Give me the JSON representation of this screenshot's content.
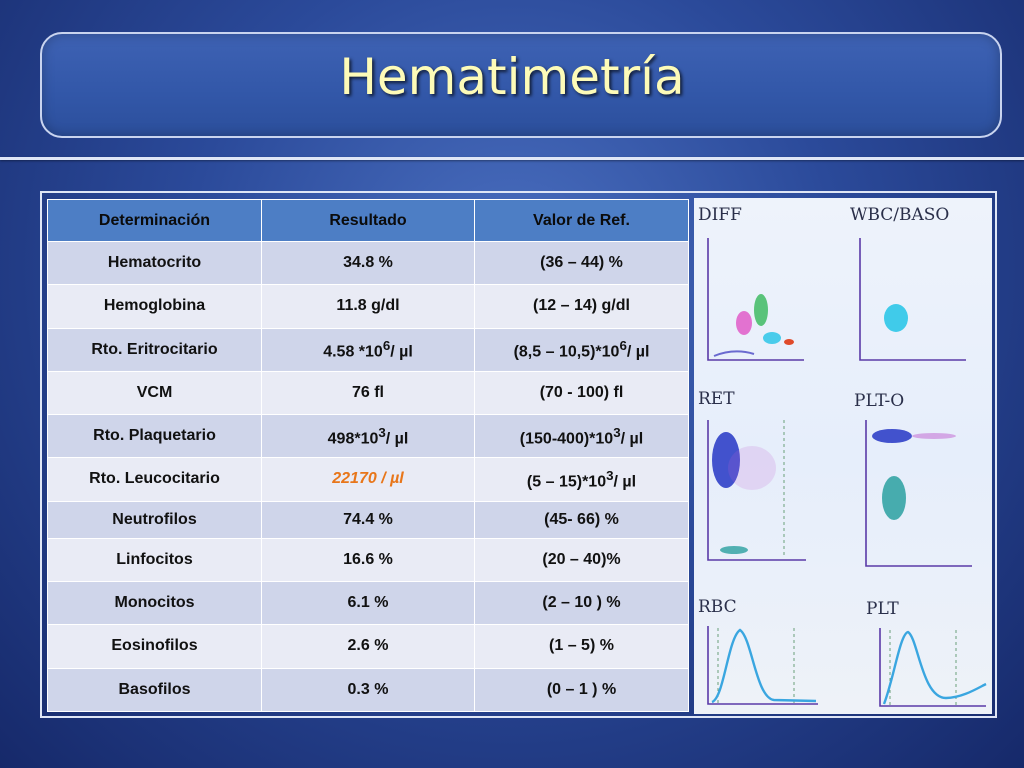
{
  "title": "Hematimetría",
  "table": {
    "headers": [
      "Determinación",
      "Resultado",
      "Valor de Ref."
    ],
    "rows": [
      {
        "name": "Hematocrito",
        "result": "34.8 %",
        "ref": "(36 – 44) %"
      },
      {
        "name": "Hemoglobina",
        "result": "11.8 g/dl",
        "ref": "(12 – 14) g/dl"
      },
      {
        "name": "Rto. Eritrocitario",
        "result_base": "4.58 *10",
        "result_exp": "6",
        "result_tail": "/ µl",
        "ref_base": "(8,5 – 10,5)*10",
        "ref_exp": "6",
        "ref_tail": "/ µl"
      },
      {
        "name": "VCM",
        "result": "76 fl",
        "ref": "(70 - 100) fl"
      },
      {
        "name": "Rto. Plaquetario",
        "result_base": "498*10",
        "result_exp": "3",
        "result_tail": "/ µl",
        "ref_base": "(150-400)*10",
        "ref_exp": "3",
        "ref_tail": "/ µl"
      },
      {
        "name": "Rto. Leucocitario",
        "result": "22170 / µl",
        "ref_base": "(5 – 15)*10",
        "ref_exp": "3",
        "ref_tail": "/ µl"
      },
      {
        "name": "Neutrofilos",
        "result": "74.4 %",
        "ref": "(45- 66) %"
      },
      {
        "name": "Linfocitos",
        "result": "16.6 %",
        "ref": "(20 – 40)%"
      },
      {
        "name": "Monocitos",
        "result": "6.1 %",
        "ref": "(2 – 10 ) %"
      },
      {
        "name": "Eosinofilos",
        "result": "2.6 %",
        "ref": "(1 – 5) %"
      },
      {
        "name": "Basofilos",
        "result": "0.3 %",
        "ref": "(0 – 1 ) %"
      }
    ]
  },
  "scattergrams": {
    "diff": "DIFF",
    "wbc_baso": "WBC/BASO",
    "ret": "RET",
    "plt_o": "PLT-O",
    "rbc": "RBC",
    "plt": "PLT"
  },
  "colors": {
    "title_text": "#fdfbb8",
    "header_bg": "#4d7ec5",
    "row_odd": "#cfd5ea",
    "row_even": "#e9ebf5",
    "highlight": "#e8761a"
  }
}
